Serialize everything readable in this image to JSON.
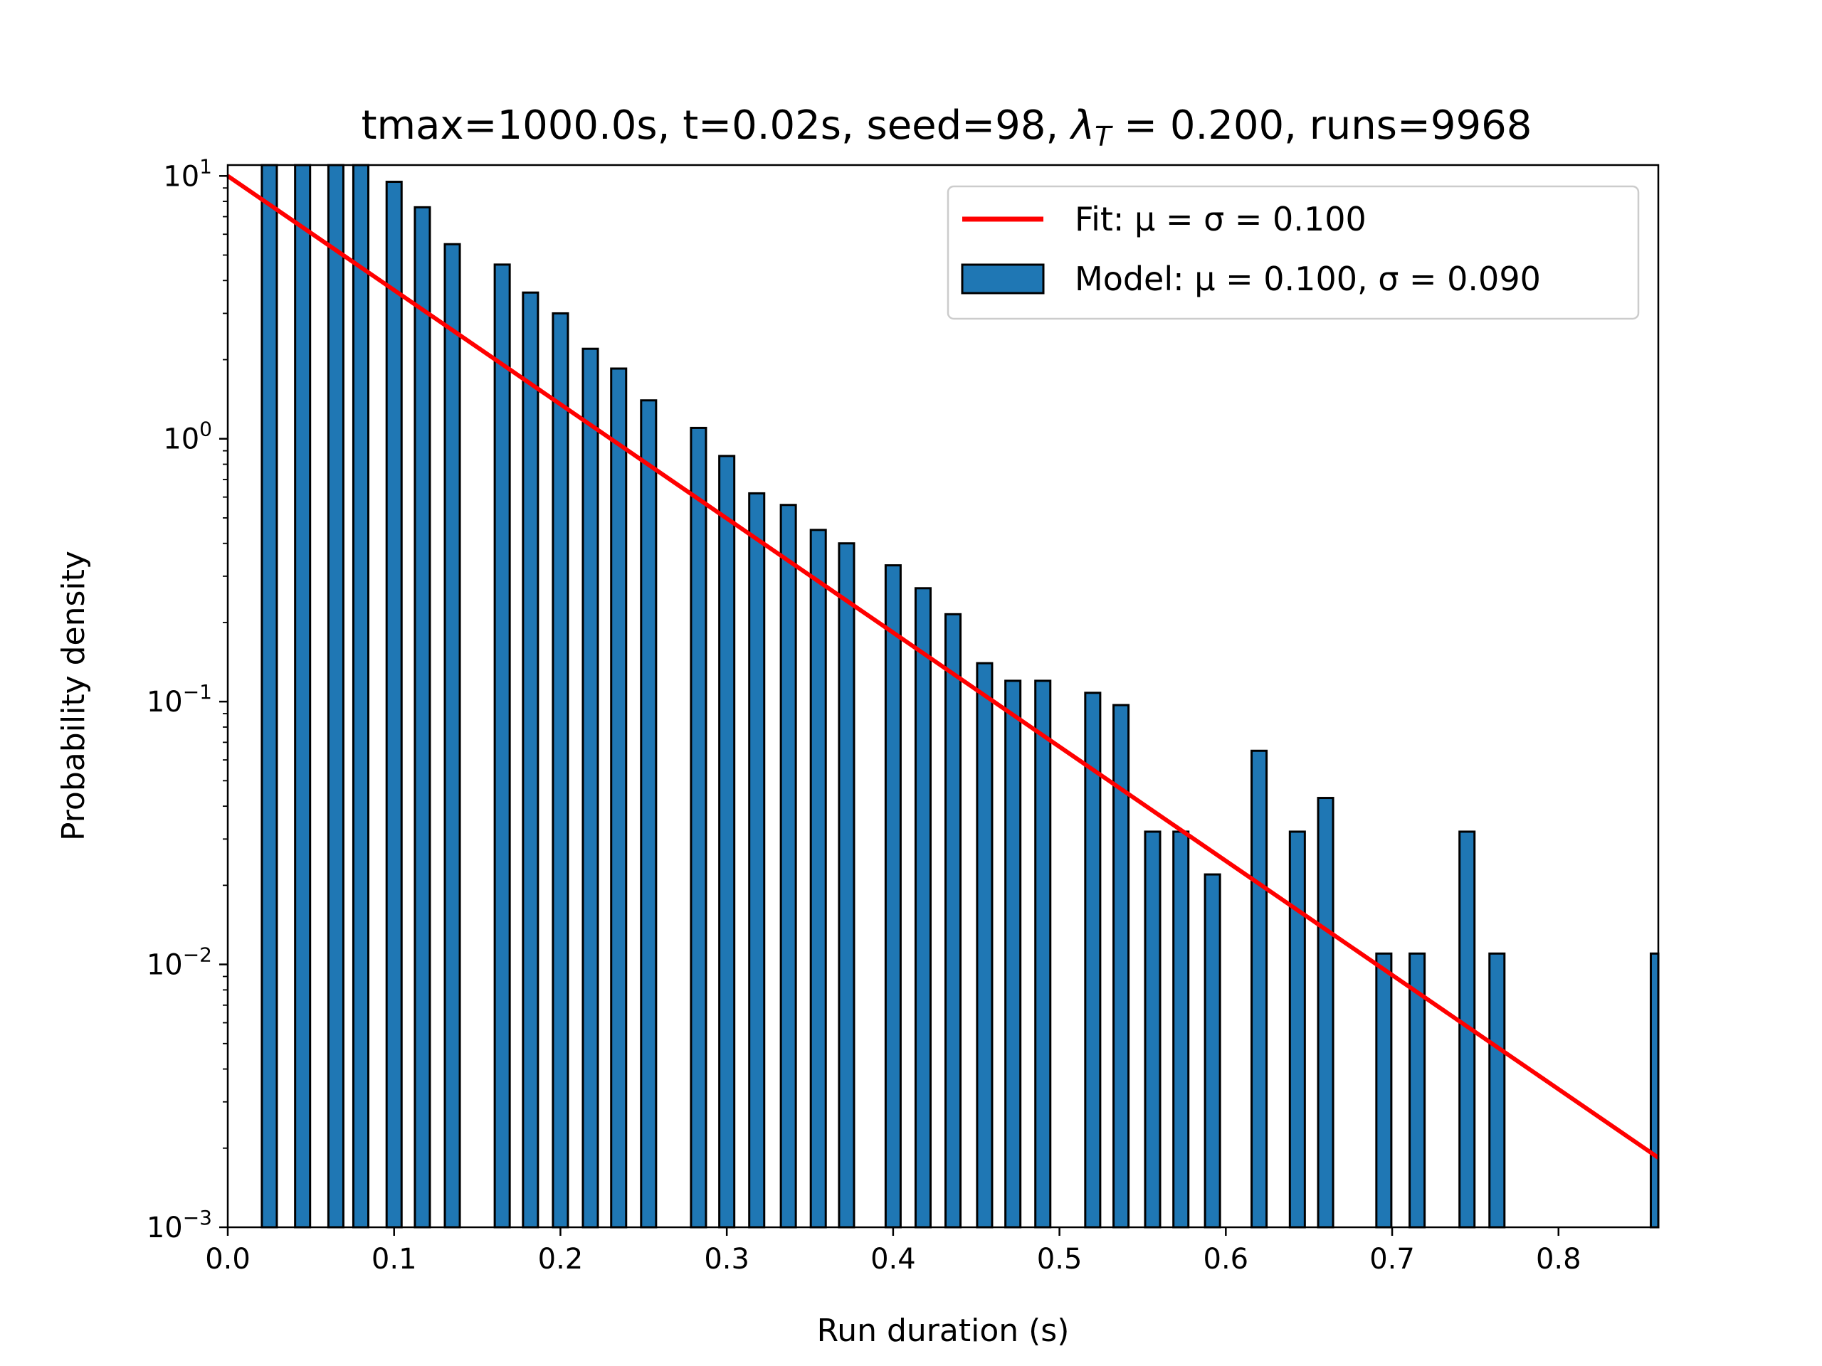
{
  "chart_data": {
    "type": "bar",
    "title": "tmax=1000.0s, t=0.02s, seed=98, λ_T = 0.200, runs=9968",
    "title_parts": {
      "prefix": "tmax=1000.0s, t=0.02s, seed=98, ",
      "lambda": "λ",
      "lambda_sub": "T",
      "suffix": " = 0.200, runs=9968"
    },
    "xlabel": "Run duration (s)",
    "ylabel": "Probability density",
    "xlim": [
      0.0,
      0.86
    ],
    "ylim": [
      0.001,
      11
    ],
    "yscale": "log",
    "grid": false,
    "legend_position": "top-right",
    "bar_width": 0.009,
    "x_ticks": [
      {
        "value": 0.0,
        "label": "0.0"
      },
      {
        "value": 0.1,
        "label": "0.1"
      },
      {
        "value": 0.2,
        "label": "0.2"
      },
      {
        "value": 0.3,
        "label": "0.3"
      },
      {
        "value": 0.4,
        "label": "0.4"
      },
      {
        "value": 0.5,
        "label": "0.5"
      },
      {
        "value": 0.6,
        "label": "0.6"
      },
      {
        "value": 0.7,
        "label": "0.7"
      },
      {
        "value": 0.8,
        "label": "0.8"
      }
    ],
    "y_ticks": [
      {
        "value": 10,
        "base": "10",
        "exp": "1"
      },
      {
        "value": 1,
        "base": "10",
        "exp": "0"
      },
      {
        "value": 0.1,
        "base": "10",
        "exp": "−1"
      },
      {
        "value": 0.01,
        "base": "10",
        "exp": "−2"
      },
      {
        "value": 0.001,
        "base": "10",
        "exp": "−3"
      }
    ],
    "legend": [
      {
        "key": "fit",
        "marker": "line",
        "text": "Fit: μ = σ = 0.100"
      },
      {
        "key": "model",
        "marker": "patch",
        "text": "Model: μ = 0.100, σ = 0.090"
      }
    ],
    "series": [
      {
        "name": "Model: μ = 0.100, σ = 0.090",
        "kind": "bar",
        "color": "#1f77b4",
        "edge_color": "#000000",
        "x": [
          0.025,
          0.045,
          0.065,
          0.08,
          0.1,
          0.117,
          0.135,
          0.165,
          0.182,
          0.2,
          0.218,
          0.235,
          0.253,
          0.283,
          0.3,
          0.318,
          0.337,
          0.355,
          0.372,
          0.4,
          0.418,
          0.436,
          0.455,
          0.472,
          0.49,
          0.52,
          0.537,
          0.556,
          0.573,
          0.592,
          0.62,
          0.643,
          0.66,
          0.695,
          0.715,
          0.745,
          0.763,
          0.86
        ],
        "values": [
          11,
          11,
          11,
          11,
          9.5,
          7.6,
          5.5,
          4.6,
          3.6,
          3.0,
          2.2,
          1.85,
          1.4,
          1.1,
          0.86,
          0.62,
          0.56,
          0.45,
          0.4,
          0.33,
          0.27,
          0.215,
          0.14,
          0.12,
          0.12,
          0.108,
          0.097,
          0.032,
          0.032,
          0.022,
          0.065,
          0.032,
          0.043,
          0.011,
          0.011,
          0.032,
          0.011,
          0.011
        ]
      },
      {
        "name": "Fit: μ = σ = 0.100",
        "kind": "line",
        "color": "#ff0000",
        "x": [
          0.0,
          0.86
        ],
        "values": [
          10.0,
          0.00184
        ]
      }
    ]
  }
}
